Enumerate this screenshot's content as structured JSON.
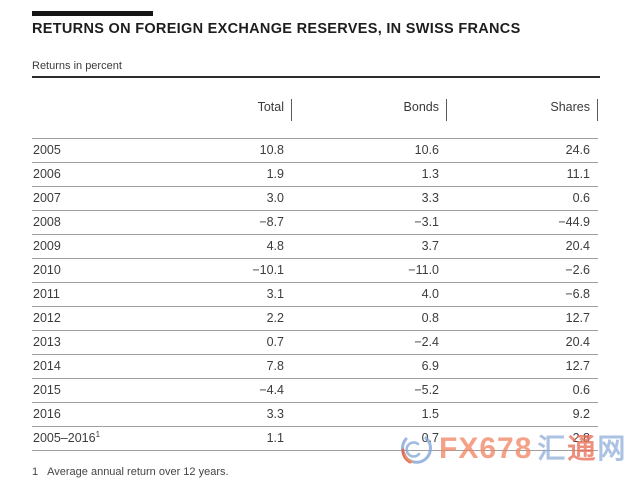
{
  "title": "RETURNS ON FOREIGN EXCHANGE RESERVES, IN SWISS FRANCS",
  "subtitle": "Returns in percent",
  "table": {
    "columns": [
      "Total",
      "Bonds",
      "Shares"
    ],
    "rows": [
      {
        "year": "2005",
        "total": "10.8",
        "bonds": "10.6",
        "shares": "24.6"
      },
      {
        "year": "2006",
        "total": "1.9",
        "bonds": "1.3",
        "shares": "11.1"
      },
      {
        "year": "2007",
        "total": "3.0",
        "bonds": "3.3",
        "shares": "0.6"
      },
      {
        "year": "2008",
        "total": "−8.7",
        "bonds": "−3.1",
        "shares": "−44.9"
      },
      {
        "year": "2009",
        "total": "4.8",
        "bonds": "3.7",
        "shares": "20.4"
      },
      {
        "year": "2010",
        "total": "−10.1",
        "bonds": "−11.0",
        "shares": "−2.6"
      },
      {
        "year": "2011",
        "total": "3.1",
        "bonds": "4.0",
        "shares": "−6.8"
      },
      {
        "year": "2012",
        "total": "2.2",
        "bonds": "0.8",
        "shares": "12.7"
      },
      {
        "year": "2013",
        "total": "0.7",
        "bonds": "−2.4",
        "shares": "20.4"
      },
      {
        "year": "2014",
        "total": "7.8",
        "bonds": "6.9",
        "shares": "12.7"
      },
      {
        "year": "2015",
        "total": "−4.4",
        "bonds": "−5.2",
        "shares": "0.6"
      },
      {
        "year": "2016",
        "total": "3.3",
        "bonds": "1.5",
        "shares": "9.2"
      },
      {
        "year": "2005–2016",
        "year_sup": "1",
        "total": "1.1",
        "bonds": "0.7",
        "shares": "2.8"
      }
    ]
  },
  "footnote": {
    "marker": "1",
    "text": "Average annual return over 12 years."
  },
  "watermark": {
    "brand": "FX678",
    "cjk": "汇通网",
    "chars": [
      "汇",
      "通",
      "网"
    ]
  },
  "colors": {
    "text": "#3c3c3c",
    "title": "#1d1d1d",
    "rule_dark": "#2b2b2b",
    "rule_light": "#9f9f9f",
    "watermark_orange": "#f28767",
    "watermark_blue": "#8aaad8",
    "watermark_red": "#e9705a"
  },
  "chart_data": {
    "type": "table",
    "title": "RETURNS ON FOREIGN EXCHANGE RESERVES, IN SWISS FRANCS",
    "unit": "percent",
    "categories": [
      "2005",
      "2006",
      "2007",
      "2008",
      "2009",
      "2010",
      "2011",
      "2012",
      "2013",
      "2014",
      "2015",
      "2016",
      "2005–2016 (average annual return over 12 years)"
    ],
    "series": [
      {
        "name": "Total",
        "values": [
          10.8,
          1.9,
          3.0,
          -8.7,
          4.8,
          -10.1,
          3.1,
          2.2,
          0.7,
          7.8,
          -4.4,
          3.3,
          1.1
        ]
      },
      {
        "name": "Bonds",
        "values": [
          10.6,
          1.3,
          3.3,
          -3.1,
          3.7,
          -11.0,
          4.0,
          0.8,
          -2.4,
          6.9,
          -5.2,
          1.5,
          0.7
        ]
      },
      {
        "name": "Shares",
        "values": [
          24.6,
          11.1,
          0.6,
          -44.9,
          20.4,
          -2.6,
          -6.8,
          12.7,
          20.4,
          12.7,
          0.6,
          9.2,
          2.8
        ]
      }
    ]
  }
}
